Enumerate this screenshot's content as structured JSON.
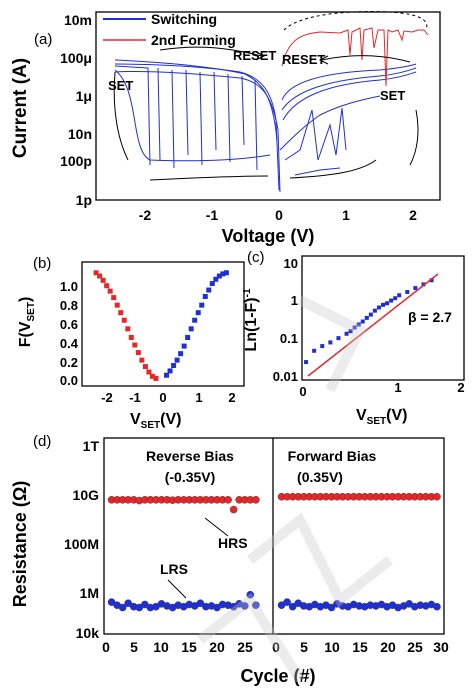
{
  "panels": {
    "a": {
      "label": "(a)",
      "xlabel": "Voltage (V)",
      "ylabel": "Current (A)",
      "xticks": [
        "-2",
        "-1",
        "0",
        "1",
        "2"
      ],
      "yticks": [
        "10m",
        "100μ",
        "1μ",
        "10n",
        "100p",
        "1p"
      ],
      "legend": [
        "Switching",
        "2nd Forming"
      ],
      "annotations": {
        "reset_left": "RESET",
        "reset_right": "RESET",
        "set_left": "SET",
        "set_right": "SET"
      },
      "colors": {
        "switching": "#1f2fd6",
        "forming": "#e8262a"
      }
    },
    "b": {
      "label": "(b)",
      "yticks": [
        "1.0",
        "0.8",
        "0.6",
        "0.4",
        "0.2",
        "0.0"
      ],
      "xticks": [
        "-2",
        "-1",
        "0",
        "1",
        "2"
      ],
      "ylabel_main": "F(V",
      "ylabel_sub": "SET",
      "ylabel_end": ")",
      "xlabel_main": "V",
      "xlabel_sub": "SET",
      "xlabel_end": "(V)"
    },
    "c": {
      "label": "(c)",
      "yticks": [
        "10",
        "1",
        "0.1",
        "0.01"
      ],
      "xticks": [
        "0",
        "1",
        "2"
      ],
      "ylabel_main": "Ln(1-F)",
      "ylabel_sup": "-1",
      "xlabel_main": "V",
      "xlabel_sub": "SET",
      "xlabel_end": "(V)",
      "fit_label": "β = 2.7"
    },
    "d": {
      "label": "(d)",
      "xlabel": "Cycle (#)",
      "ylabel": "Resistance (Ω)",
      "yticks": [
        "1T",
        "10G",
        "100M",
        "1M",
        "10k"
      ],
      "xticks": [
        "0",
        "5",
        "10",
        "15",
        "20",
        "25",
        "0",
        "5",
        "10",
        "15",
        "20",
        "25",
        "30"
      ],
      "bias_left_title": "Reverse Bias",
      "bias_left_value": "(-0.35V)",
      "bias_right_title": "Forward Bias",
      "bias_right_value": "(0.35V)",
      "hrs_label": "HRS",
      "lrs_label": "LRS"
    }
  },
  "chart_data": [
    {
      "type": "line",
      "panel": "a",
      "xlabel": "Voltage (V)",
      "ylabel": "Current (A)",
      "xlim": [
        -2.6,
        2.4
      ],
      "ylim_log10": [
        -12,
        -2
      ],
      "yscale": "log",
      "series": [
        {
          "name": "Switching",
          "x": [
            -2,
            -1.8,
            -1.5,
            -1.2,
            -1,
            -0.7,
            -0.4,
            -0.2,
            -0.05,
            0
          ],
          "y": [
            3e-05,
            2.5e-05,
            2e-05,
            1.5e-05,
            1.2e-05,
            8e-06,
            4e-06,
            1e-06,
            1e-07,
            1e-09
          ]
        },
        {
          "name": "2nd Forming",
          "x": [
            0.05,
            0.2,
            0.5,
            0.8,
            1.0,
            1.2,
            1.4,
            1.6,
            1.8,
            2.0,
            2.2
          ],
          "y": [
            1e-06,
            0.0002,
            0.0008,
            0.001,
            0.001,
            0.001,
            0.0005,
            0.001,
            0.001,
            0.001,
            0.001
          ]
        }
      ]
    },
    {
      "type": "scatter",
      "panel": "b",
      "xlim": [
        -2.3,
        2.3
      ],
      "ylim": [
        -0.05,
        1.1
      ],
      "series": [
        {
          "name": "",
          "x": [
            -1.9,
            -1.8,
            -1.7,
            -1.6,
            -1.5,
            -1.4,
            -1.3,
            -1.2,
            -1.1,
            -1.0,
            -0.9,
            -0.8,
            -0.7,
            -0.6,
            -0.5,
            -0.4,
            -0.3,
            -0.2
          ],
          "y": [
            1.0,
            0.97,
            0.93,
            0.88,
            0.83,
            0.77,
            0.7,
            0.63,
            0.56,
            0.48,
            0.4,
            0.33,
            0.26,
            0.19,
            0.13,
            0.08,
            0.04,
            0.02
          ]
        },
        {
          "name": "",
          "x": [
            0.1,
            0.2,
            0.3,
            0.4,
            0.5,
            0.6,
            0.7,
            0.8,
            0.9,
            1.0,
            1.1,
            1.2,
            1.3,
            1.4,
            1.5,
            1.6,
            1.7,
            1.8
          ],
          "y": [
            0.05,
            0.09,
            0.14,
            0.19,
            0.25,
            0.32,
            0.4,
            0.48,
            0.56,
            0.63,
            0.7,
            0.78,
            0.84,
            0.9,
            0.94,
            0.97,
            0.99,
            1.0
          ]
        }
      ]
    },
    {
      "type": "scatter",
      "panel": "c",
      "xlim": [
        0,
        2
      ],
      "ylim_log10": [
        -2,
        1.3
      ],
      "yscale": "log",
      "fit_beta": 2.7,
      "series": [
        {
          "name": "",
          "x": [
            0.05,
            0.15,
            0.25,
            0.35,
            0.45,
            0.55,
            0.6,
            0.65,
            0.7,
            0.75,
            0.8,
            0.85,
            0.9,
            0.95,
            1.0,
            1.05,
            1.1,
            1.15,
            1.2,
            1.3,
            1.4,
            1.5,
            1.6
          ],
          "y": [
            0.03,
            0.06,
            0.08,
            0.1,
            0.13,
            0.17,
            0.2,
            0.25,
            0.3,
            0.36,
            0.45,
            0.55,
            0.7,
            0.85,
            1.0,
            1.1,
            1.3,
            1.5,
            1.8,
            2.2,
            2.8,
            3.5,
            4.5
          ]
        }
      ]
    },
    {
      "type": "scatter",
      "panel": "d",
      "xlabel": "Cycle (#)",
      "ylabel": "Resistance (Ω)",
      "yscale": "log",
      "ylim_log10": [
        4,
        12
      ],
      "series": [
        {
          "name": "HRS",
          "segment": "Reverse Bias",
          "x": [
            1,
            2,
            3,
            4,
            5,
            6,
            7,
            8,
            9,
            10,
            11,
            12,
            13,
            14,
            15,
            16,
            17,
            18,
            19,
            20,
            21,
            22,
            23,
            24,
            25,
            26,
            27
          ],
          "y": [
            3000000000.0,
            3000000000.0,
            3000000000.0,
            3000000000.0,
            3000000000.0,
            2800000000.0,
            3000000000.0,
            3000000000.0,
            3000000000.0,
            3000000000.0,
            3000000000.0,
            2900000000.0,
            3000000000.0,
            3000000000.0,
            3000000000.0,
            3000000000.0,
            3000000000.0,
            3000000000.0,
            3000000000.0,
            3000000000.0,
            3000000000.0,
            3000000000.0,
            1200000000.0,
            3000000000.0,
            3000000000.0,
            3000000000.0,
            3000000000.0
          ]
        },
        {
          "name": "LRS",
          "segment": "Reverse Bias",
          "x": [
            1,
            2,
            3,
            4,
            5,
            6,
            7,
            8,
            9,
            10,
            11,
            12,
            13,
            14,
            15,
            16,
            17,
            18,
            19,
            20,
            21,
            22,
            23,
            24,
            25,
            26,
            27
          ],
          "y": [
            200000.0,
            150000.0,
            120000.0,
            180000.0,
            130000.0,
            120000.0,
            160000.0,
            120000.0,
            130000.0,
            170000.0,
            140000.0,
            120000.0,
            150000.0,
            130000.0,
            160000.0,
            140000.0,
            180000.0,
            130000.0,
            140000.0,
            120000.0,
            160000.0,
            150000.0,
            130000.0,
            170000.0,
            140000.0,
            400000.0,
            150000.0
          ]
        },
        {
          "name": "HRS",
          "segment": "Forward Bias",
          "x": [
            1,
            2,
            3,
            4,
            5,
            6,
            7,
            8,
            9,
            10,
            11,
            12,
            13,
            14,
            15,
            16,
            17,
            18,
            19,
            20,
            21,
            22,
            23,
            24,
            25,
            26,
            27,
            28,
            29
          ],
          "y": [
            4000000000.0,
            4000000000.0,
            4000000000.0,
            4000000000.0,
            4000000000.0,
            4000000000.0,
            4000000000.0,
            4000000000.0,
            4000000000.0,
            4000000000.0,
            4000000000.0,
            4000000000.0,
            4000000000.0,
            4000000000.0,
            4000000000.0,
            4000000000.0,
            4000000000.0,
            4000000000.0,
            4000000000.0,
            4000000000.0,
            4000000000.0,
            4000000000.0,
            4000000000.0,
            4000000000.0,
            4000000000.0,
            4000000000.0,
            4000000000.0,
            4000000000.0,
            4000000000.0
          ]
        },
        {
          "name": "LRS",
          "segment": "Forward Bias",
          "x": [
            1,
            2,
            3,
            4,
            5,
            6,
            7,
            8,
            9,
            10,
            11,
            12,
            13,
            14,
            15,
            16,
            17,
            18,
            19,
            20,
            21,
            22,
            23,
            24,
            25,
            26,
            27,
            28,
            29
          ],
          "y": [
            150000.0,
            200000.0,
            130000.0,
            180000.0,
            140000.0,
            130000.0,
            160000.0,
            130000.0,
            150000.0,
            120000.0,
            170000.0,
            140000.0,
            130000.0,
            160000.0,
            140000.0,
            130000.0,
            150000.0,
            140000.0,
            160000.0,
            130000.0,
            150000.0,
            120000.0,
            140000.0,
            170000.0,
            130000.0,
            150000.0,
            140000.0,
            160000.0,
            130000.0
          ]
        }
      ]
    }
  ]
}
